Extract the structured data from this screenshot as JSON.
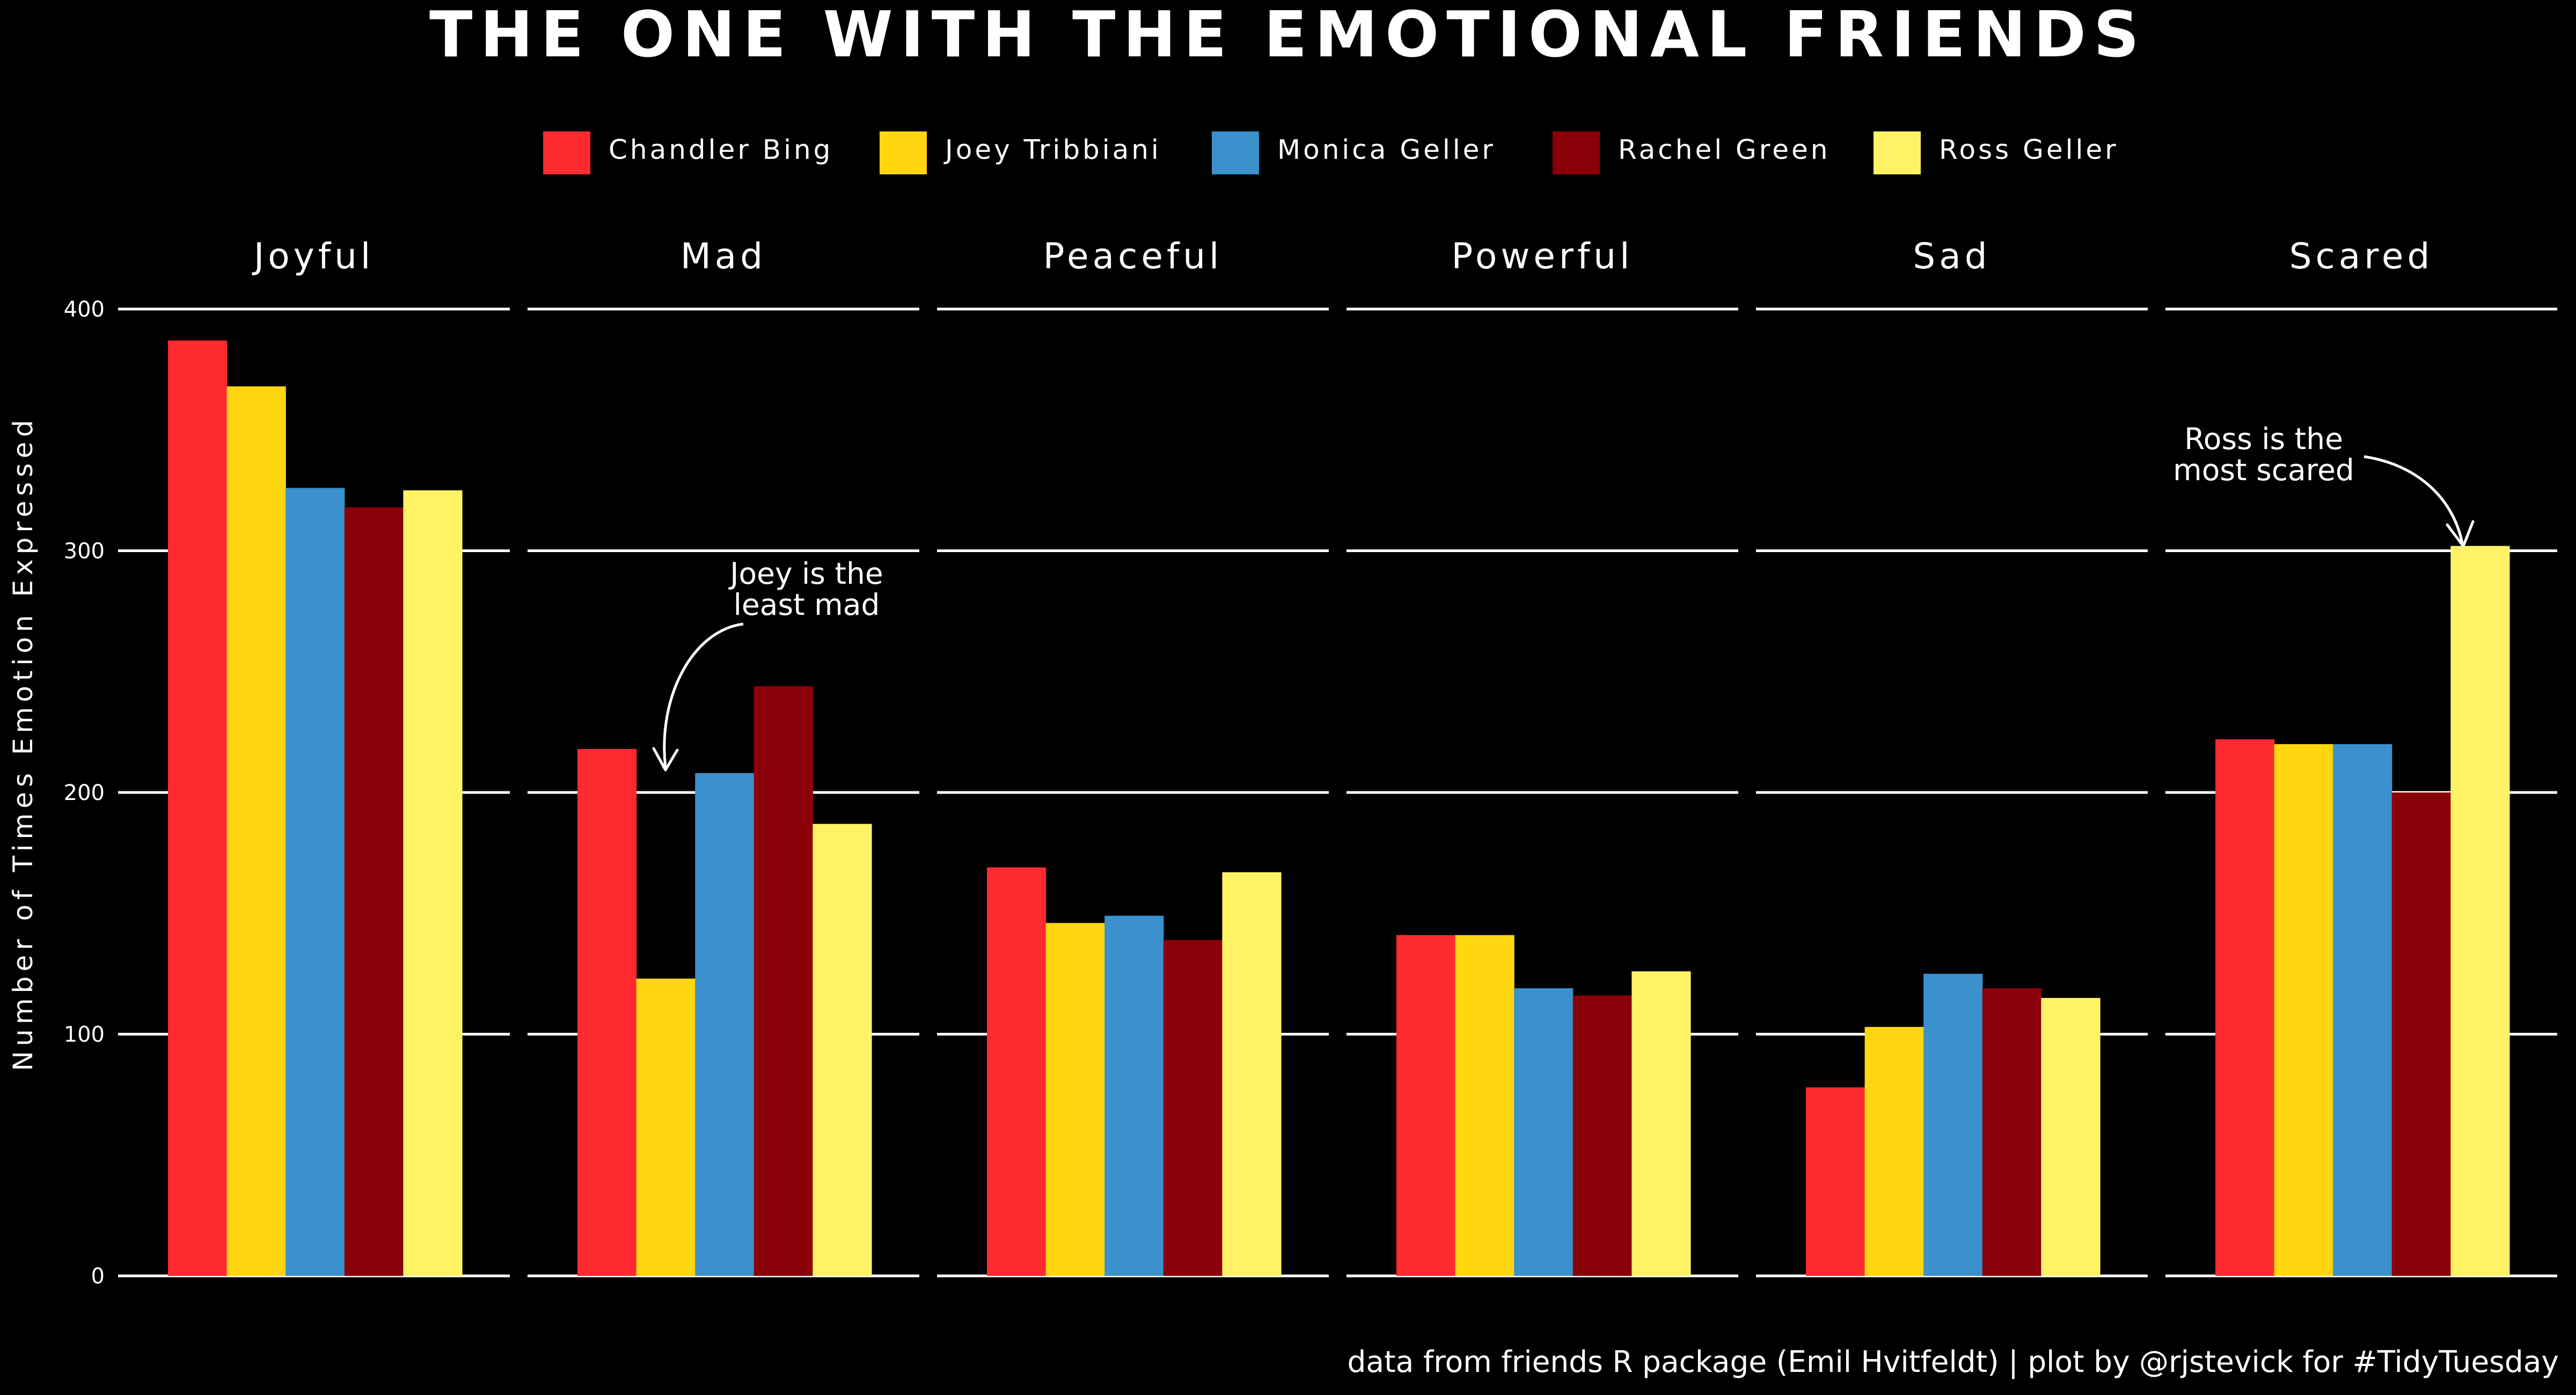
{
  "chart_data": {
    "type": "bar",
    "title": "The One with the Emotional Friends",
    "ylabel": "Number of Times Emotion Expressed",
    "ylim": [
      0,
      400
    ],
    "yticks": [
      0,
      100,
      200,
      300,
      400
    ],
    "facets": [
      "Joyful",
      "Mad",
      "Peaceful",
      "Powerful",
      "Sad",
      "Scared"
    ],
    "series": [
      {
        "name": "Chandler Bing",
        "color": "#ff2a2f",
        "values": [
          387,
          218,
          169,
          141,
          78,
          222
        ]
      },
      {
        "name": "Joey Tribbiani",
        "color": "#ffd60f",
        "values": [
          368,
          123,
          146,
          141,
          103,
          220
        ]
      },
      {
        "name": "Monica Geller",
        "color": "#3a91cc",
        "values": [
          326,
          208,
          149,
          119,
          125,
          220
        ]
      },
      {
        "name": "Rachel Green",
        "color": "#8a0009",
        "values": [
          318,
          244,
          139,
          116,
          119,
          200
        ]
      },
      {
        "name": "Ross Geller",
        "color": "#fff365",
        "values": [
          325,
          187,
          167,
          126,
          115,
          302
        ]
      }
    ],
    "legend_position": "top-center",
    "grid": true,
    "annotations": [
      {
        "lines": [
          "Joey is the",
          "least mad"
        ],
        "facet": "Mad",
        "series": "Joey Tribbiani"
      },
      {
        "lines": [
          "Ross is the",
          "most scared"
        ],
        "facet": "Scared",
        "series": "Ross Geller"
      }
    ],
    "caption": "data from friends R package (Emil Hvitfeldt) | plot by @rjstevick for #TidyTuesday"
  }
}
